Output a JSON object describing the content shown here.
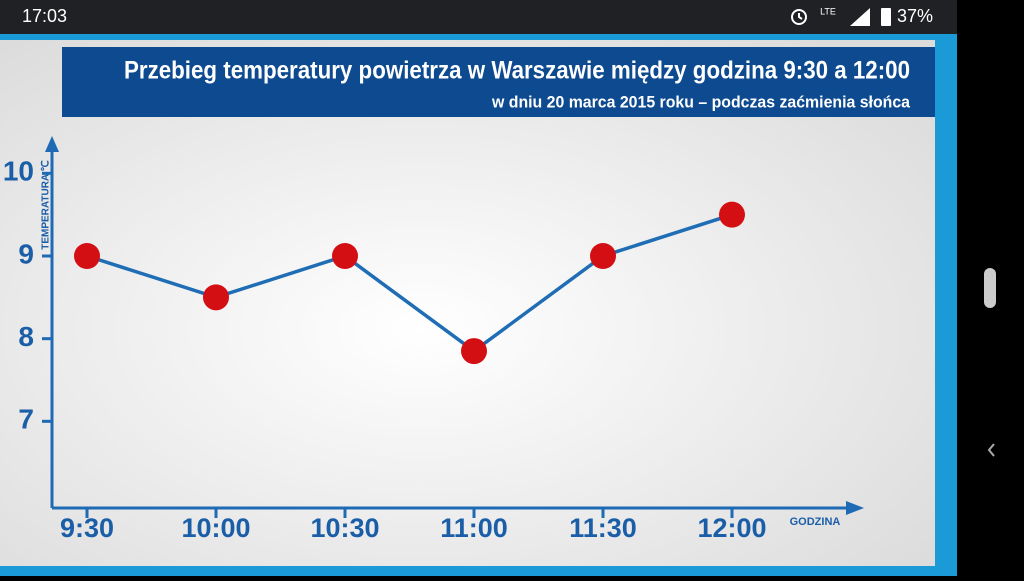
{
  "status_bar": {
    "time": "17:03",
    "network": "LTE",
    "battery": "37%"
  },
  "chart_data": {
    "type": "line",
    "title": "Przebieg temperatury powietrza w Warszawie między godzina 9:30  a 12:00",
    "subtitle": "w dniu 20 marca 2015 roku – podczas zaćmienia słońca",
    "y_label": "TEMPERATURA ℃",
    "x_label": "GODZINA",
    "categories": [
      "9:30",
      "10:00",
      "10:30",
      "11:00",
      "11:30",
      "12:00"
    ],
    "values": [
      9,
      8.5,
      9,
      7.85,
      9,
      9.5
    ],
    "color": "#1f6db5",
    "marker_color": "#d40f14",
    "ylim": [
      6,
      10.5
    ],
    "yticks": [
      7,
      8,
      9,
      10
    ],
    "grid": false
  }
}
